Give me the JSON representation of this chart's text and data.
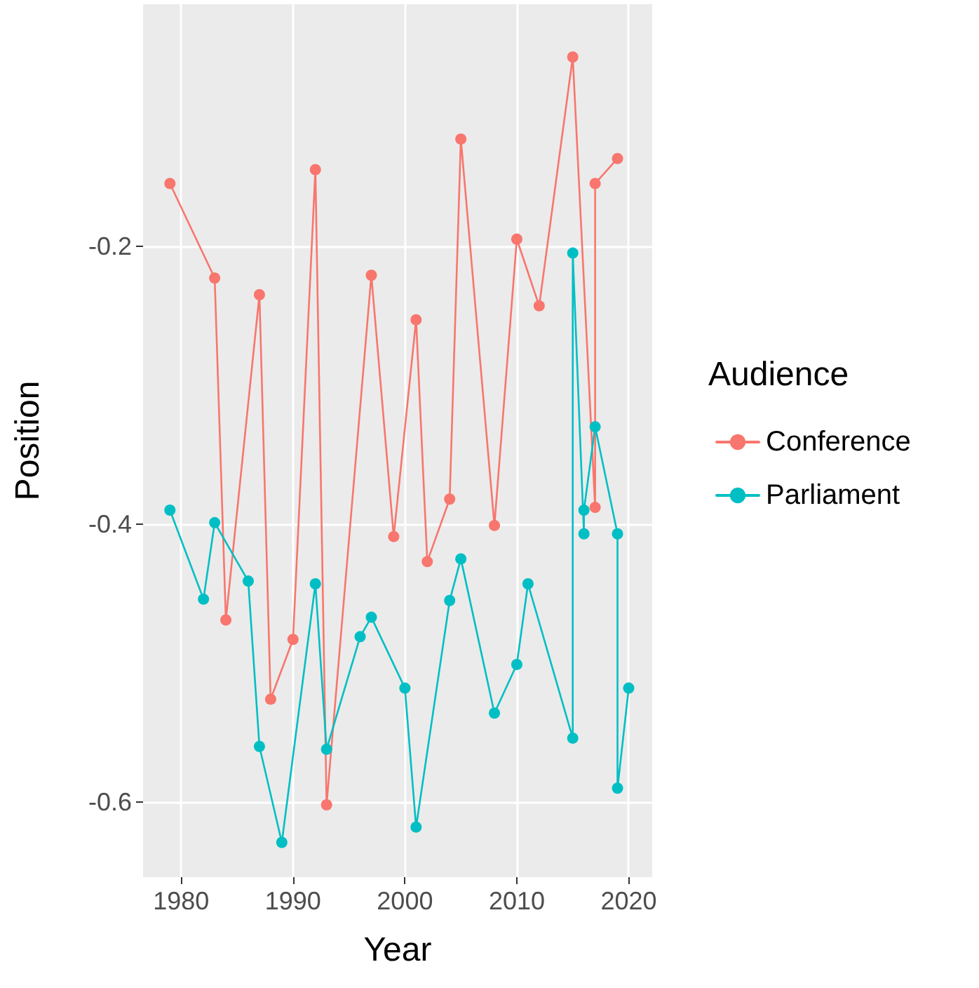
{
  "chart_data": {
    "type": "line",
    "xlabel": "Year",
    "ylabel": "Position",
    "legend_title": "Audience",
    "legend": "right",
    "grid": true,
    "marker": "circle",
    "xlim": [
      1976.6,
      2022.1
    ],
    "xticks": [
      1980,
      1990,
      2000,
      2010,
      2020
    ],
    "ylim": [
      -0.654,
      -0.026
    ],
    "yticks": [
      -0.6,
      -0.4,
      -0.2
    ],
    "series": [
      {
        "name": "Conference",
        "color": "#f8766d",
        "x": [
          1979,
          1983,
          1984,
          1987,
          1988,
          1990,
          1992,
          1993,
          1997,
          1999,
          2001,
          2002,
          2004,
          2005,
          2008,
          2010,
          2012,
          2015,
          2017,
          2017,
          2019
        ],
        "values": [
          -0.155,
          -0.223,
          -0.469,
          -0.235,
          -0.526,
          -0.483,
          -0.145,
          -0.602,
          -0.221,
          -0.409,
          -0.253,
          -0.427,
          -0.382,
          -0.123,
          -0.401,
          -0.195,
          -0.243,
          -0.064,
          -0.388,
          -0.155,
          -0.137
        ]
      },
      {
        "name": "Parliament",
        "color": "#00bfc4",
        "x": [
          1979,
          1982,
          1983,
          1986,
          1987,
          1989,
          1992,
          1993,
          1996,
          1997,
          2000,
          2001,
          2004,
          2005,
          2008,
          2010,
          2011,
          2015,
          2015,
          2016,
          2016,
          2017,
          2019,
          2019,
          2020
        ],
        "values": [
          -0.39,
          -0.454,
          -0.399,
          -0.441,
          -0.56,
          -0.629,
          -0.443,
          -0.562,
          -0.481,
          -0.467,
          -0.518,
          -0.618,
          -0.455,
          -0.425,
          -0.536,
          -0.501,
          -0.443,
          -0.554,
          -0.205,
          -0.407,
          -0.39,
          -0.33,
          -0.407,
          -0.59,
          -0.518
        ]
      }
    ]
  }
}
